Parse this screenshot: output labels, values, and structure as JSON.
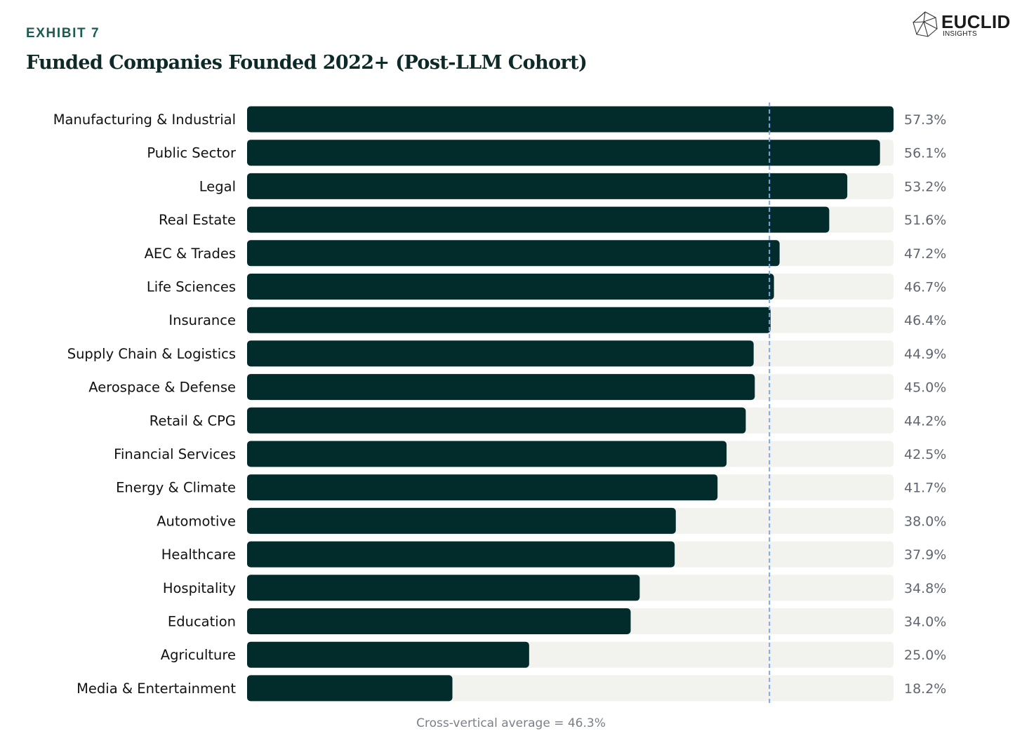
{
  "header": {
    "exhibit": "EXHIBIT 7",
    "title": "Funded Companies Founded 2022+ (Post-LLM Cohort)"
  },
  "logo": {
    "name": "EUCLID",
    "subtitle": "INSIGHTS"
  },
  "colors": {
    "bar": "#022b2b",
    "track": "#f2f2ee",
    "label": "#111111",
    "value": "#5f6670",
    "average_line": "#7fa8e6",
    "accent": "#1a5c53"
  },
  "chart_data": {
    "type": "bar",
    "orientation": "horizontal",
    "title": "Funded Companies Founded 2022+ (Post-LLM Cohort)",
    "categories": [
      "Manufacturing & Industrial",
      "Public Sector",
      "Legal",
      "Real Estate",
      "AEC & Trades",
      "Life Sciences",
      "Insurance",
      "Supply Chain & Logistics",
      "Aerospace & Defense",
      "Retail & CPG",
      "Financial Services",
      "Energy & Climate",
      "Automotive",
      "Healthcare",
      "Hospitality",
      "Education",
      "Agriculture",
      "Media & Entertainment"
    ],
    "values": [
      57.3,
      56.1,
      53.2,
      51.6,
      47.2,
      46.7,
      46.4,
      44.9,
      45.0,
      44.2,
      42.5,
      41.7,
      38.0,
      37.9,
      34.8,
      34.0,
      25.0,
      18.2
    ],
    "value_labels": [
      "57.3%",
      "56.1%",
      "53.2%",
      "51.6%",
      "47.2%",
      "46.7%",
      "46.4%",
      "44.9%",
      "45.0%",
      "44.2%",
      "42.5%",
      "41.7%",
      "38.0%",
      "37.9%",
      "34.8%",
      "34.0%",
      "25.0%",
      "18.2%"
    ],
    "xlim": [
      0,
      57.3
    ],
    "unit": "%",
    "average": 46.3,
    "average_label": "Cross-vertical average = 46.3%",
    "grid": false,
    "legend": "none"
  }
}
